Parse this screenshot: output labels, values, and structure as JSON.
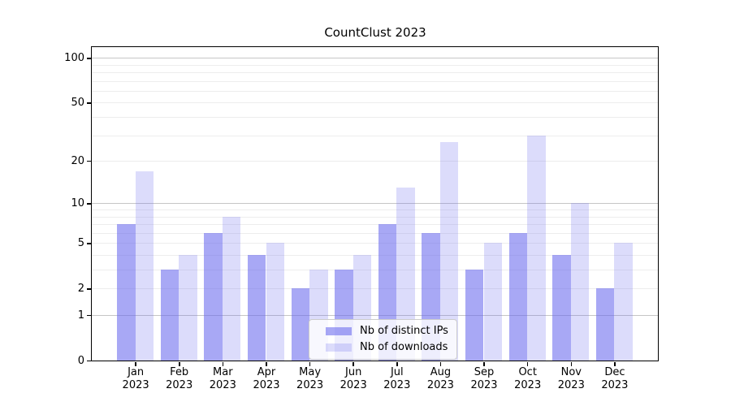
{
  "title": "CountClust 2023",
  "colors": {
    "bar_base": "#6666ee",
    "bar_distinct_ips": "rgba(102,102,238,0.57)",
    "bar_downloads": "rgba(102,102,238,0.23)",
    "grid_major": "#c6c6c6",
    "grid_minor": "#ededed",
    "axis": "#000000",
    "legend_border": "#cccccc"
  },
  "y_axis": {
    "tick_labels": [
      "100",
      "50",
      "20",
      "10",
      "5",
      "2",
      "1",
      "0"
    ]
  },
  "chart_data": {
    "type": "bar",
    "title": "CountClust 2023",
    "categories": [
      "Jan 2023",
      "Feb 2023",
      "Mar 2023",
      "Apr 2023",
      "May 2023",
      "Jun 2023",
      "Jul 2023",
      "Aug 2023",
      "Sep 2023",
      "Oct 2023",
      "Nov 2023",
      "Dec 2023"
    ],
    "series": [
      {
        "name": "Nb of distinct IPs",
        "values": [
          7,
          3,
          6,
          4,
          2,
          3,
          7,
          6,
          3,
          6,
          4,
          2
        ],
        "color": "rgba(102,102,238,0.57)"
      },
      {
        "name": "Nb of downloads",
        "values": [
          17,
          4,
          8,
          5,
          3,
          4,
          13,
          27,
          5,
          30,
          10,
          5
        ],
        "color": "rgba(102,102,238,0.23)"
      }
    ],
    "xlabel": "",
    "ylabel": "",
    "yscale": "log1p",
    "ylim": [
      0,
      118
    ],
    "y_ticks": [
      0,
      1,
      2,
      5,
      10,
      20,
      50,
      100
    ],
    "y_gridlines_major": [
      1,
      10,
      100
    ],
    "y_gridlines_minor": [
      2,
      3,
      4,
      5,
      6,
      7,
      8,
      9,
      20,
      30,
      40,
      50,
      60,
      70,
      80,
      90
    ],
    "grid": true,
    "legend_position": "lower center"
  }
}
